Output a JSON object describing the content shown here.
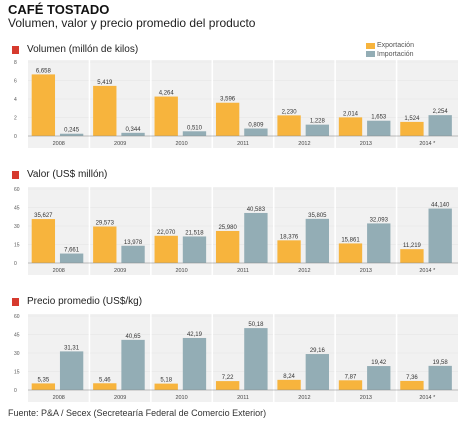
{
  "header": {
    "title": "CAFÉ TOSTADO",
    "subtitle": "Volumen, valor y precio promedio del producto"
  },
  "colors": {
    "export": "#f7b43d",
    "import": "#93adb5",
    "marker": "#d63a2e"
  },
  "legend": {
    "export": "Exportación",
    "import": "Importación"
  },
  "source": "Fuente: P&A / Secex (Secretearía Federal de Comercio Exterior)",
  "chart_data": [
    {
      "type": "bar",
      "title": "Volumen (millón de kilos)",
      "categories": [
        "2008",
        "2009",
        "2010",
        "2011",
        "2012",
        "2013",
        "2014 *"
      ],
      "series": [
        {
          "name": "Exportación",
          "values": [
            6.658,
            5.419,
            4.264,
            3.596,
            2.23,
            2.014,
            1.524
          ],
          "labels": [
            "6,658",
            "5,419",
            "4,264",
            "3,596",
            "2,230",
            "2,014",
            "1,524"
          ]
        },
        {
          "name": "Importación",
          "values": [
            0.245,
            0.344,
            0.51,
            0.809,
            1.228,
            1.653,
            2.254
          ],
          "labels": [
            "0,245",
            "0,344",
            "0,510",
            "0,809",
            "1,228",
            "1,653",
            "2,254"
          ]
        }
      ],
      "yticks": [
        "8",
        "6",
        "4",
        "2",
        "0"
      ],
      "ylim": [
        0,
        8
      ]
    },
    {
      "type": "bar",
      "title": "Valor (US$ millón)",
      "categories": [
        "2008",
        "2009",
        "2010",
        "2011",
        "2012",
        "2013",
        "2014 *"
      ],
      "series": [
        {
          "name": "Exportación",
          "values": [
            35.627,
            29.573,
            22.07,
            25.98,
            18.376,
            15.861,
            11.219
          ],
          "labels": [
            "35,627",
            "29,573",
            "22,070",
            "25,980",
            "18,376",
            "15,861",
            "11,219"
          ]
        },
        {
          "name": "Importación",
          "values": [
            7.661,
            13.978,
            21.518,
            40.583,
            35.805,
            32.093,
            44.14
          ],
          "labels": [
            "7,661",
            "13,978",
            "21,518",
            "40,583",
            "35,805",
            "32,093",
            "44,140"
          ]
        }
      ],
      "yticks": [
        "60",
        "45",
        "30",
        "15",
        "0"
      ],
      "ylim": [
        0,
        60
      ]
    },
    {
      "type": "bar",
      "title": "Precio promedio (US$/kg)",
      "categories": [
        "2008",
        "2009",
        "2010",
        "2011",
        "2012",
        "2013",
        "2014 *"
      ],
      "series": [
        {
          "name": "Exportación",
          "values": [
            5.35,
            5.46,
            5.18,
            7.22,
            8.24,
            7.87,
            7.36
          ],
          "labels": [
            "5,35",
            "5,46",
            "5,18",
            "7,22",
            "8,24",
            "7,87",
            "7,36"
          ]
        },
        {
          "name": "Importación",
          "values": [
            31.31,
            40.65,
            42.19,
            50.18,
            29.16,
            19.42,
            19.58
          ],
          "labels": [
            "31,31",
            "40,65",
            "42,19",
            "50,18",
            "29,16",
            "19,42",
            "19,58"
          ]
        }
      ],
      "yticks": [
        "60",
        "45",
        "30",
        "15",
        "0"
      ],
      "ylim": [
        0,
        60
      ]
    }
  ]
}
